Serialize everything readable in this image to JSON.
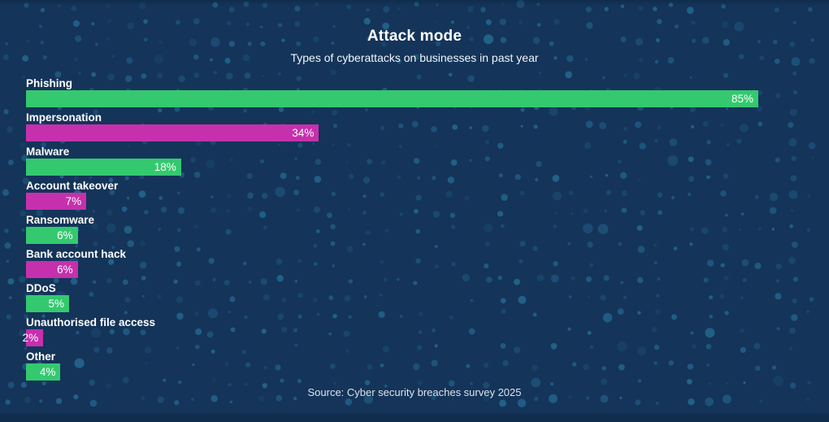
{
  "header": {
    "title": "Attack mode",
    "subtitle": "Types of cyberattacks on businesses in past year"
  },
  "footer": {
    "source": "Source: Cyber security breaches survey 2025"
  },
  "colors": {
    "background": "#143459",
    "edge_band": "#112d4d",
    "dot": "#2f8cb5",
    "green": "#34c96f",
    "magenta": "#c630ac",
    "text": "#ffffff"
  },
  "chart_data": {
    "type": "bar",
    "orientation": "horizontal",
    "title": "Attack mode",
    "subtitle": "Types of cyberattacks on businesses in past year",
    "xlabel": "",
    "ylabel": "",
    "xlim": [
      0,
      100
    ],
    "grid": false,
    "legend": false,
    "value_suffix": "%",
    "categories": [
      "Phishing",
      "Impersonation",
      "Malware",
      "Account takeover",
      "Ransomware",
      "Bank account hack",
      "DDoS",
      "Unauthorised file access",
      "Other"
    ],
    "values": [
      85,
      34,
      18,
      7,
      6,
      6,
      5,
      2,
      4
    ],
    "value_labels": [
      "85%",
      "34%",
      "18%",
      "7%",
      "6%",
      "6%",
      "5%",
      "2%",
      "4%"
    ],
    "bar_colors": [
      "#34c96f",
      "#c630ac",
      "#34c96f",
      "#c630ac",
      "#34c96f",
      "#c630ac",
      "#34c96f",
      "#c630ac",
      "#34c96f"
    ]
  }
}
